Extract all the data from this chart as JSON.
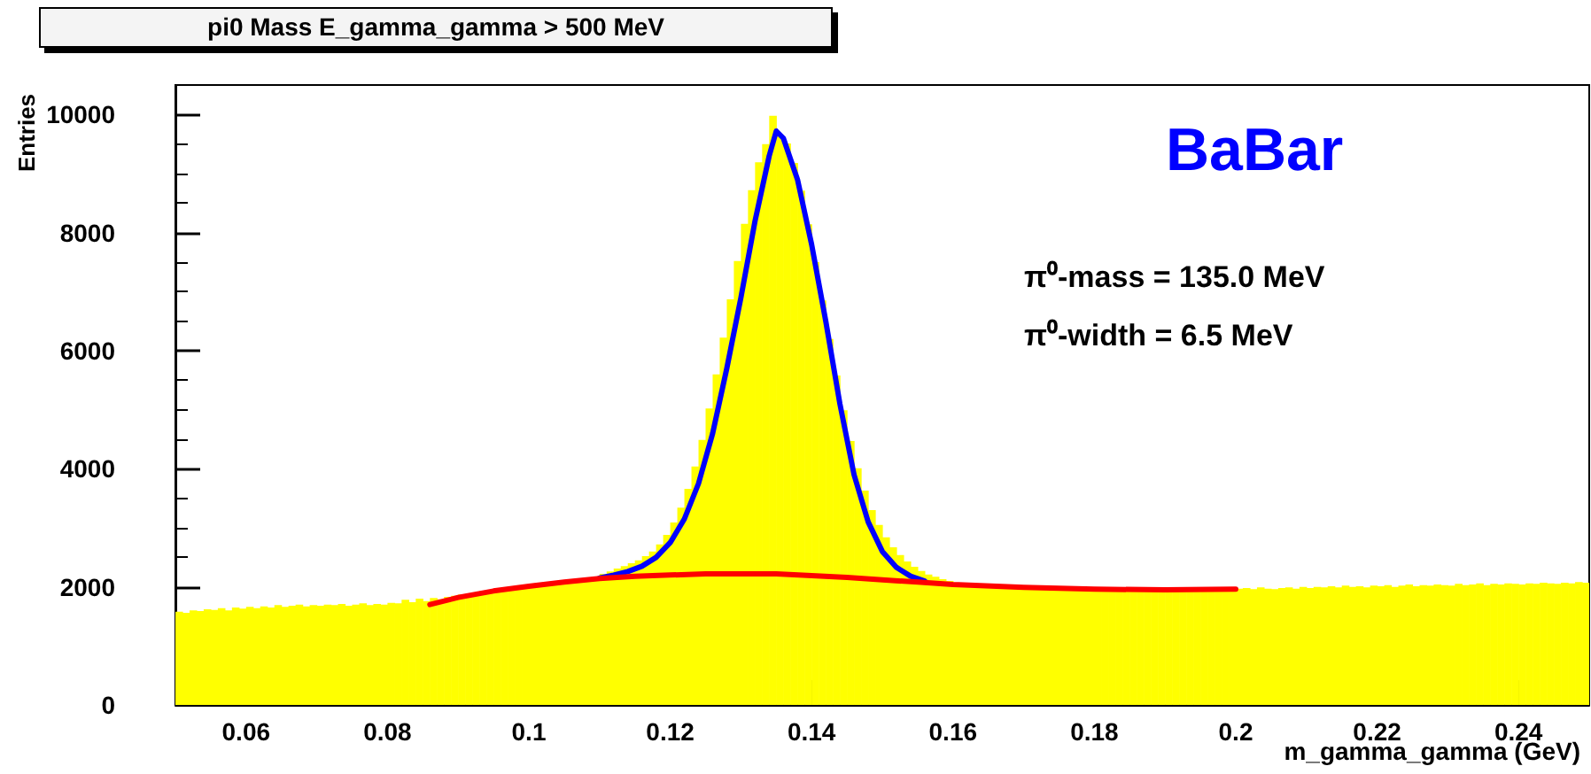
{
  "chart_data": {
    "type": "histogram",
    "title": "pi0 Mass E_gamma_gamma > 500 MeV",
    "xlabel": "m_gamma_gamma (GeV)",
    "ylabel": "Entries",
    "annotations": [
      "BaBar",
      "π⁰-mass = 135.0 MeV",
      "π⁰-width = 6.5 MeV"
    ],
    "color": "#ffff00",
    "bins": [
      0.05,
      0.051,
      0.052,
      0.053,
      0.054,
      0.055,
      0.056,
      0.057,
      0.058,
      0.059,
      0.06,
      0.061,
      0.062,
      0.063,
      0.064,
      0.065,
      0.066,
      0.067,
      0.068,
      0.069,
      0.07,
      0.071,
      0.072,
      0.073,
      0.074,
      0.075,
      0.076,
      0.077,
      0.078,
      0.079,
      0.08,
      0.081,
      0.082,
      0.083,
      0.084,
      0.085,
      0.086,
      0.087,
      0.088,
      0.089,
      0.09,
      0.091,
      0.092,
      0.093,
      0.094,
      0.095,
      0.096,
      0.097,
      0.098,
      0.099,
      0.1,
      0.101,
      0.102,
      0.103,
      0.104,
      0.105,
      0.106,
      0.107,
      0.108,
      0.109,
      0.11,
      0.111,
      0.112,
      0.113,
      0.114,
      0.115,
      0.116,
      0.117,
      0.118,
      0.119,
      0.12,
      0.121,
      0.122,
      0.123,
      0.124,
      0.125,
      0.126,
      0.127,
      0.128,
      0.129,
      0.13,
      0.131,
      0.132,
      0.133,
      0.134,
      0.135,
      0.136,
      0.137,
      0.138,
      0.139,
      0.14,
      0.141,
      0.142,
      0.143,
      0.144,
      0.145,
      0.146,
      0.147,
      0.148,
      0.149,
      0.15,
      0.151,
      0.152,
      0.153,
      0.154,
      0.155,
      0.156,
      0.157,
      0.158,
      0.159,
      0.16,
      0.161,
      0.162,
      0.163,
      0.164,
      0.165,
      0.166,
      0.167,
      0.168,
      0.169,
      0.17,
      0.171,
      0.172,
      0.173,
      0.174,
      0.175,
      0.176,
      0.177,
      0.178,
      0.179,
      0.18,
      0.181,
      0.182,
      0.183,
      0.184,
      0.185,
      0.186,
      0.187,
      0.188,
      0.189,
      0.19,
      0.191,
      0.192,
      0.193,
      0.194,
      0.195,
      0.196,
      0.197,
      0.198,
      0.199,
      0.2,
      0.201,
      0.202,
      0.203,
      0.204,
      0.205,
      0.206,
      0.207,
      0.208,
      0.209,
      0.21,
      0.211,
      0.212,
      0.213,
      0.214,
      0.215,
      0.216,
      0.217,
      0.218,
      0.219,
      0.22,
      0.221,
      0.222,
      0.223,
      0.224,
      0.225,
      0.226,
      0.227,
      0.228,
      0.229,
      0.23,
      0.231,
      0.232,
      0.233,
      0.234,
      0.235,
      0.236,
      0.237,
      0.238,
      0.239,
      0.24,
      0.241,
      0.242,
      0.243,
      0.244,
      0.245,
      0.246,
      0.247,
      0.248,
      0.249,
      0.25
    ],
    "values": [
      1580,
      1560,
      1600,
      1590,
      1620,
      1610,
      1640,
      1600,
      1650,
      1630,
      1660,
      1640,
      1670,
      1650,
      1690,
      1660,
      1680,
      1700,
      1670,
      1690,
      1680,
      1700,
      1690,
      1710,
      1680,
      1700,
      1720,
      1690,
      1710,
      1700,
      1730,
      1720,
      1780,
      1740,
      1800,
      1760,
      1810,
      1790,
      1830,
      1850,
      1870,
      1860,
      1900,
      1930,
      1910,
      1950,
      1940,
      1980,
      1960,
      1990,
      2010,
      2030,
      2040,
      2060,
      2050,
      2080,
      2090,
      2110,
      2120,
      2140,
      2220,
      2260,
      2310,
      2350,
      2400,
      2450,
      2520,
      2600,
      2720,
      2880,
      3090,
      3340,
      3660,
      4040,
      4490,
      5020,
      5600,
      6220,
      6870,
      7520,
      8150,
      8720,
      9190,
      9500,
      9980,
      9650,
      9510,
      9180,
      8710,
      8140,
      7500,
      6850,
      6200,
      5580,
      4990,
      4470,
      4010,
      3630,
      3300,
      3050,
      2840,
      2670,
      2540,
      2430,
      2340,
      2270,
      2210,
      2170,
      2130,
      2100,
      2060,
      2040,
      2050,
      2030,
      2010,
      2030,
      2000,
      2010,
      1990,
      2000,
      1990,
      2000,
      1980,
      1970,
      1990,
      1960,
      1980,
      1970,
      1960,
      1970,
      1960,
      1950,
      1970,
      1950,
      1960,
      1940,
      1960,
      1950,
      1970,
      1950,
      1960,
      1980,
      1950,
      1970,
      1960,
      1950,
      1970,
      1960,
      1980,
      1960,
      1970,
      1980,
      1960,
      1990,
      1970,
      1960,
      1980,
      1990,
      1970,
      2000,
      1980,
      2000,
      1990,
      2010,
      1990,
      2020,
      2000,
      2010,
      1990,
      2020,
      2010,
      2030,
      2000,
      2020,
      2040,
      2010,
      2030,
      2020,
      2040,
      2030,
      2020,
      2050,
      2030,
      2040,
      2060,
      2030,
      2050,
      2040,
      2060,
      2050,
      2040,
      2060,
      2050,
      2070,
      2060,
      2050,
      2070,
      2060,
      2080,
      2070
    ],
    "series": [
      {
        "type": "line",
        "color": "#0000ff",
        "x": [
          0.11,
          0.112,
          0.114,
          0.116,
          0.118,
          0.12,
          0.122,
          0.124,
          0.126,
          0.128,
          0.13,
          0.132,
          0.134,
          0.135,
          0.136,
          0.138,
          0.14,
          0.142,
          0.144,
          0.146,
          0.148,
          0.15,
          0.152,
          0.154,
          0.156
        ],
        "values": [
          2150,
          2200,
          2260,
          2350,
          2500,
          2750,
          3150,
          3750,
          4600,
          5700,
          6900,
          8200,
          9300,
          9720,
          9600,
          8900,
          7800,
          6500,
          5100,
          3900,
          3100,
          2600,
          2330,
          2180,
          2100
        ]
      },
      {
        "type": "line",
        "color": "#ff0000",
        "x": [
          0.086,
          0.09,
          0.095,
          0.1,
          0.105,
          0.11,
          0.115,
          0.12,
          0.125,
          0.13,
          0.135,
          0.14,
          0.145,
          0.15,
          0.155,
          0.16,
          0.17,
          0.18,
          0.19,
          0.2
        ],
        "values": [
          1700,
          1820,
          1930,
          2010,
          2080,
          2140,
          2180,
          2200,
          2220,
          2220,
          2220,
          2190,
          2160,
          2120,
          2080,
          2040,
          1990,
          1960,
          1950,
          1960
        ]
      }
    ],
    "xlim": [
      0.05,
      0.25
    ],
    "ylim": [
      0,
      10500
    ],
    "xticks": [
      0.06,
      0.08,
      0.1,
      0.12,
      0.14,
      0.16,
      0.18,
      0.2,
      0.22,
      0.24
    ],
    "yticks": [
      0,
      2000,
      4000,
      6000,
      8000,
      10000
    ]
  }
}
